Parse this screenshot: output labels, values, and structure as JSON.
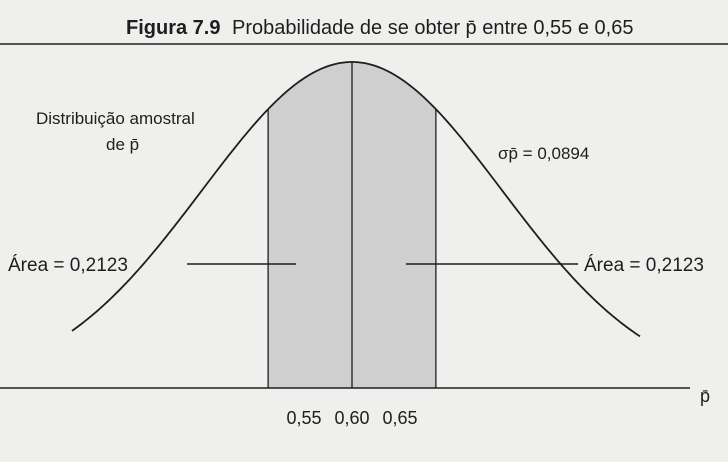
{
  "chart_data": {
    "type": "area",
    "title_bold": "Figura 7.9",
    "title_rest": "Probabilidade de se obter p̄ entre 0,55 e 0,65",
    "mean": 0.6,
    "std_error": 0.0894,
    "std_error_label": "σp̄ = 0,0894",
    "shaded_interval": [
      0.55,
      0.65
    ],
    "x_ticks": [
      {
        "value": 0.55,
        "label": "0,55"
      },
      {
        "value": 0.6,
        "label": "0,60"
      },
      {
        "value": 0.65,
        "label": "0,65"
      }
    ],
    "xlabel": "p̄",
    "curve_label_line1": "Distribuição amostral",
    "curve_label_line2": "de p̄",
    "left_area_label": "Área = 0,2123",
    "right_area_label": "Área = 0,2123",
    "left_tail_area": 0.2123,
    "right_tail_area": 0.2123
  },
  "colors": {
    "background": "#efefed",
    "ink": "#1e1e1e",
    "shade": "#cfcfcf"
  }
}
